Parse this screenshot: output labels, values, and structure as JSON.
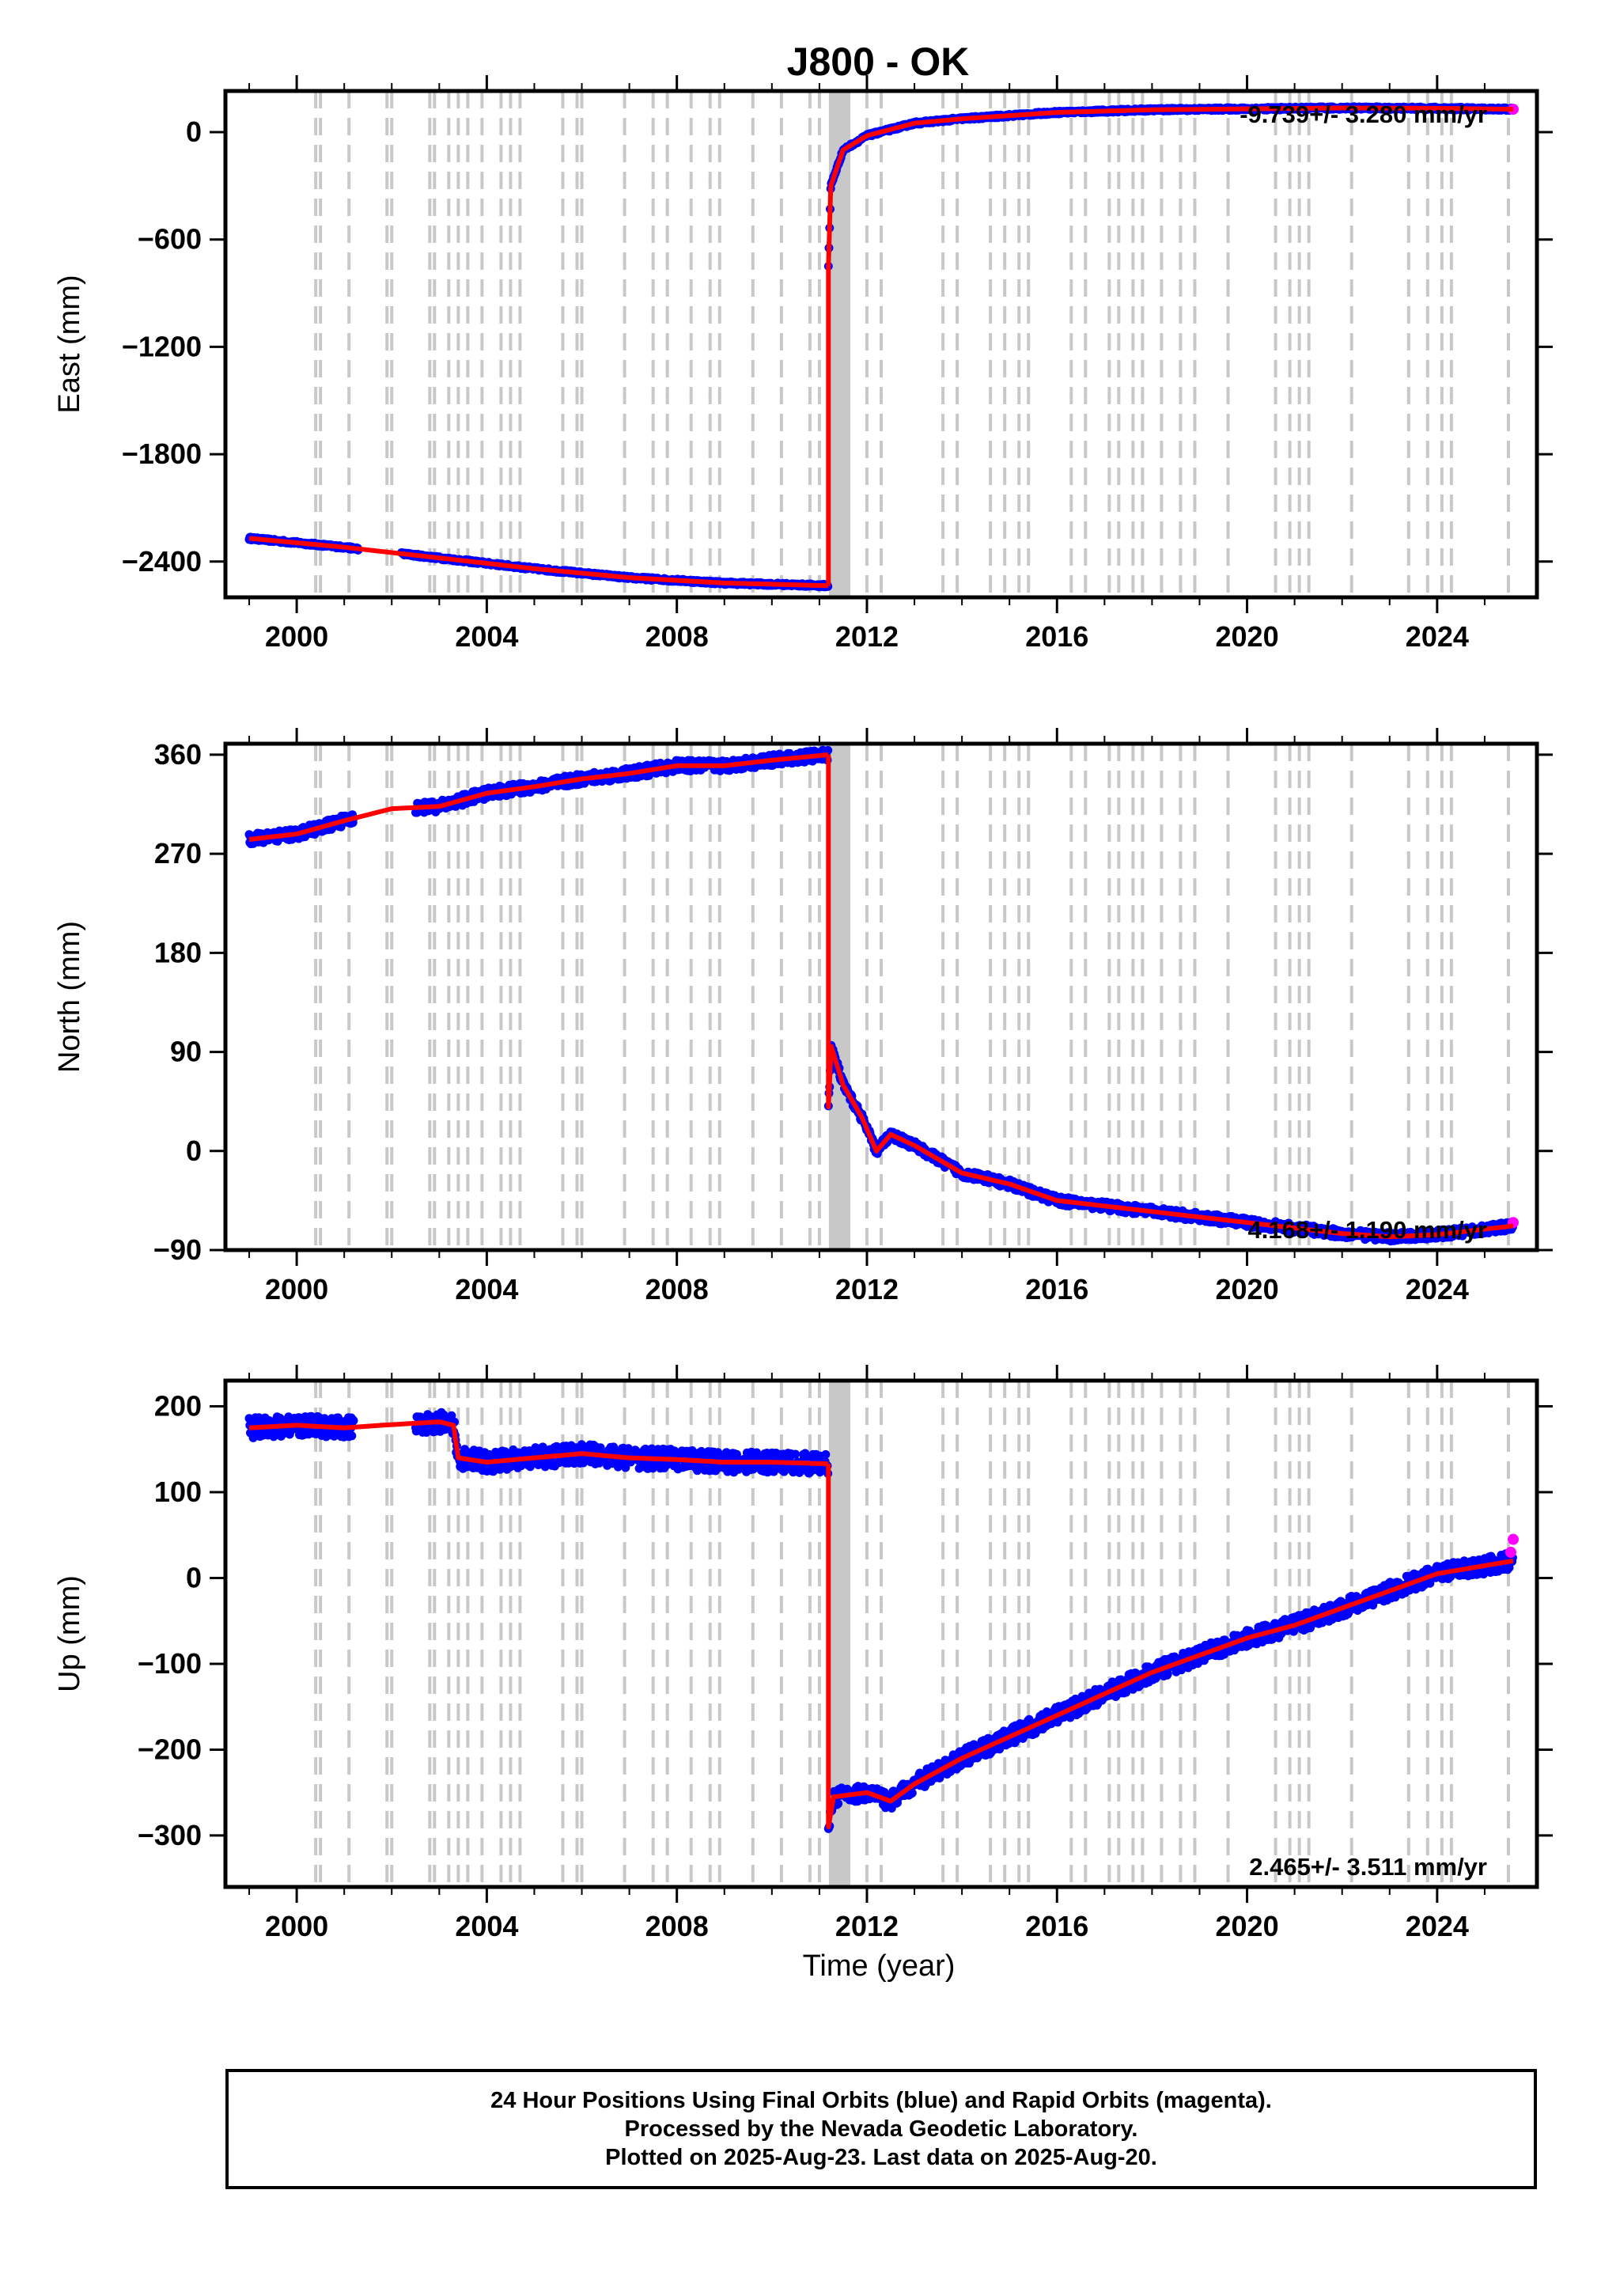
{
  "title": "J800 - OK",
  "xlabel": "Time (year)",
  "footer": {
    "line1": "24 Hour Positions Using Final Orbits (blue) and Rapid Orbits (magenta).",
    "line2": "Processed by the Nevada Geodetic Laboratory.",
    "line3": "Plotted on 2025-Aug-23. Last data on 2025-Aug-20."
  },
  "colors": {
    "final_orbits": "#0000ff",
    "rapid_orbits": "#ff00ff",
    "model": "#ff0000",
    "events": "#c8c8c8"
  },
  "events": [
    2000.4,
    2000.5,
    2001.1,
    2001.9,
    2002.0,
    2002.8,
    2002.9,
    2003.2,
    2003.4,
    2003.6,
    2003.9,
    2004.3,
    2004.5,
    2004.7,
    2005.6,
    2005.9,
    2006.0,
    2006.9,
    2007.5,
    2007.8,
    2008.3,
    2008.7,
    2008.9,
    2009.6,
    2010.2,
    2010.8,
    2011.0,
    2011.3,
    2011.6,
    2012.0,
    2012.3,
    2013.6,
    2013.9,
    2014.6,
    2014.9,
    2015.2,
    2015.4,
    2016.3,
    2016.6,
    2017.1,
    2017.3,
    2017.6,
    2017.8,
    2018.2,
    2018.6,
    2018.9,
    2019.6,
    2020.6,
    2020.9,
    2021.1,
    2021.3,
    2022.2,
    2023.4,
    2023.8,
    2024.1,
    2024.3,
    2025.5
  ],
  "chart_data": [
    {
      "type": "scatter",
      "ylabel": "East (mm)",
      "rate_label": "-9.739+/- 3.280 mm/yr",
      "xlim": [
        1998.5,
        2026.1
      ],
      "ylim": [
        -2600,
        230
      ],
      "xticks": [
        2000,
        2004,
        2008,
        2012,
        2016,
        2020,
        2024
      ],
      "yticks": [
        0,
        -600,
        -1200,
        -1800,
        -2400
      ],
      "series": [
        {
          "points": [
            [
              1999.0,
              -2270
            ],
            [
              2000.0,
              -2295
            ],
            [
              2001.0,
              -2320
            ],
            [
              2003.0,
              -2380
            ],
            [
              2005.0,
              -2440
            ],
            [
              2007.0,
              -2490
            ],
            [
              2009.0,
              -2520
            ],
            [
              2011.19,
              -2535
            ]
          ],
          "noise": 8
        },
        {
          "points": [
            [
              2011.19,
              -750
            ],
            [
              2011.24,
              -300
            ],
            [
              2011.5,
              -100
            ],
            [
              2012.0,
              -20
            ],
            [
              2013.0,
              50
            ],
            [
              2014.0,
              75
            ],
            [
              2016.0,
              110
            ],
            [
              2018.0,
              125
            ],
            [
              2020.0,
              130
            ],
            [
              2022.0,
              135
            ],
            [
              2024.0,
              133
            ],
            [
              2025.6,
              128
            ]
          ],
          "noise": 8
        }
      ],
      "model": [
        [
          [
            1999.0,
            -2270
          ],
          [
            2000.0,
            -2295
          ],
          [
            2001.0,
            -2320
          ],
          [
            2003.0,
            -2380
          ],
          [
            2005.0,
            -2440
          ],
          [
            2007.0,
            -2490
          ],
          [
            2009.0,
            -2520
          ],
          [
            2011.19,
            -2535
          ]
        ],
        [
          [
            2011.19,
            -2535
          ],
          [
            2011.19,
            -750
          ],
          [
            2011.24,
            -300
          ],
          [
            2011.5,
            -100
          ],
          [
            2012.0,
            -20
          ],
          [
            2013.0,
            50
          ],
          [
            2014.0,
            75
          ],
          [
            2016.0,
            110
          ],
          [
            2018.0,
            125
          ],
          [
            2020.0,
            130
          ],
          [
            2022.0,
            135
          ],
          [
            2024.0,
            133
          ],
          [
            2025.6,
            128
          ]
        ]
      ],
      "rapid": [
        [
          2025.6,
          128
        ]
      ]
    },
    {
      "type": "scatter",
      "ylabel": "North (mm)",
      "rate_label": "4.168+/- 1.190 mm/yr",
      "xlim": [
        1998.5,
        2026.1
      ],
      "ylim": [
        -90,
        370
      ],
      "xticks": [
        2000,
        2004,
        2008,
        2012,
        2016,
        2020,
        2024
      ],
      "yticks": [
        360,
        270,
        180,
        90,
        0,
        -90
      ],
      "series": [
        {
          "points": [
            [
              1999.0,
              283
            ],
            [
              2000.0,
              288
            ],
            [
              2001.0,
              300
            ],
            [
              2002.0,
              311
            ],
            [
              2003.0,
              313
            ],
            [
              2004.0,
              325
            ],
            [
              2005.0,
              331
            ],
            [
              2006.0,
              338
            ],
            [
              2007.0,
              343
            ],
            [
              2008.0,
              350
            ],
            [
              2009.0,
              350
            ],
            [
              2010.0,
              355
            ],
            [
              2011.19,
              360
            ]
          ],
          "noise": 5
        },
        {
          "points": [
            [
              2011.19,
              40
            ],
            [
              2011.25,
              95
            ],
            [
              2011.5,
              60
            ],
            [
              2011.9,
              30
            ],
            [
              2012.2,
              0
            ],
            [
              2012.5,
              15
            ],
            [
              2013.0,
              5
            ],
            [
              2014.0,
              -20
            ],
            [
              2015.0,
              -30
            ],
            [
              2016.0,
              -45
            ],
            [
              2017.0,
              -50
            ],
            [
              2018.0,
              -55
            ],
            [
              2019.0,
              -60
            ],
            [
              2020.0,
              -65
            ],
            [
              2021.0,
              -70
            ],
            [
              2022.0,
              -75
            ],
            [
              2023.0,
              -78
            ],
            [
              2024.0,
              -76
            ],
            [
              2025.6,
              -68
            ]
          ],
          "noise": 4
        }
      ],
      "model": [
        [
          [
            1999.0,
            283
          ],
          [
            2000.0,
            288
          ],
          [
            2001.0,
            300
          ],
          [
            2002.0,
            311
          ],
          [
            2003.0,
            313
          ],
          [
            2004.0,
            325
          ],
          [
            2005.0,
            331
          ],
          [
            2006.0,
            338
          ],
          [
            2007.0,
            343
          ],
          [
            2008.0,
            350
          ],
          [
            2009.0,
            350
          ],
          [
            2010.0,
            355
          ],
          [
            2011.19,
            360
          ]
        ],
        [
          [
            2011.19,
            360
          ],
          [
            2011.19,
            40
          ],
          [
            2011.25,
            95
          ],
          [
            2011.5,
            60
          ],
          [
            2011.9,
            30
          ],
          [
            2012.2,
            0
          ],
          [
            2012.5,
            15
          ],
          [
            2013.0,
            5
          ],
          [
            2014.0,
            -20
          ],
          [
            2015.0,
            -30
          ],
          [
            2016.0,
            -45
          ],
          [
            2017.0,
            -50
          ],
          [
            2018.0,
            -55
          ],
          [
            2019.0,
            -60
          ],
          [
            2020.0,
            -65
          ],
          [
            2021.0,
            -70
          ],
          [
            2022.0,
            -75
          ],
          [
            2023.0,
            -78
          ],
          [
            2024.0,
            -76
          ],
          [
            2025.6,
            -68
          ]
        ]
      ],
      "rapid": [
        [
          2025.6,
          -65
        ]
      ]
    },
    {
      "type": "scatter",
      "ylabel": "Up (mm)",
      "rate_label": "2.465+/- 3.511 mm/yr",
      "xlim": [
        1998.5,
        2026.1
      ],
      "ylim": [
        -360,
        230
      ],
      "xticks": [
        2000,
        2004,
        2008,
        2012,
        2016,
        2020,
        2024
      ],
      "yticks": [
        200,
        100,
        0,
        -100,
        -200,
        -300
      ],
      "series": [
        {
          "points": [
            [
              1999.0,
              175
            ],
            [
              2000.0,
              178
            ],
            [
              2001.0,
              175
            ],
            [
              2001.8,
              178
            ],
            [
              2003.0,
              182
            ],
            [
              2003.3,
              178
            ],
            [
              2003.4,
              140
            ],
            [
              2004.0,
              135
            ],
            [
              2005.0,
              140
            ],
            [
              2006.0,
              145
            ],
            [
              2007.0,
              140
            ],
            [
              2008.0,
              138
            ],
            [
              2009.0,
              135
            ],
            [
              2010.0,
              135
            ],
            [
              2011.19,
              133
            ]
          ],
          "noise": 12
        },
        {
          "points": [
            [
              2011.19,
              -290
            ],
            [
              2011.3,
              -255
            ],
            [
              2012.0,
              -250
            ],
            [
              2012.5,
              -260
            ],
            [
              2013.0,
              -240
            ],
            [
              2014.0,
              -210
            ],
            [
              2015.0,
              -185
            ],
            [
              2016.0,
              -160
            ],
            [
              2017.0,
              -135
            ],
            [
              2018.0,
              -110
            ],
            [
              2019.0,
              -90
            ],
            [
              2020.0,
              -70
            ],
            [
              2021.0,
              -55
            ],
            [
              2022.0,
              -35
            ],
            [
              2023.0,
              -15
            ],
            [
              2024.0,
              5
            ],
            [
              2025.6,
              20
            ]
          ],
          "noise": 10
        }
      ],
      "model": [
        [
          [
            1999.0,
            175
          ],
          [
            2000.0,
            178
          ],
          [
            2001.0,
            175
          ],
          [
            2001.8,
            178
          ],
          [
            2003.0,
            182
          ],
          [
            2003.3,
            178
          ],
          [
            2003.4,
            140
          ],
          [
            2004.0,
            135
          ],
          [
            2005.0,
            140
          ],
          [
            2006.0,
            145
          ],
          [
            2007.0,
            140
          ],
          [
            2008.0,
            138
          ],
          [
            2009.0,
            135
          ],
          [
            2010.0,
            135
          ],
          [
            2011.19,
            133
          ]
        ],
        [
          [
            2011.19,
            133
          ],
          [
            2011.19,
            -290
          ],
          [
            2011.3,
            -255
          ],
          [
            2012.0,
            -250
          ],
          [
            2012.5,
            -260
          ],
          [
            2013.0,
            -240
          ],
          [
            2014.0,
            -210
          ],
          [
            2015.0,
            -185
          ],
          [
            2016.0,
            -160
          ],
          [
            2017.0,
            -135
          ],
          [
            2018.0,
            -110
          ],
          [
            2019.0,
            -90
          ],
          [
            2020.0,
            -70
          ],
          [
            2021.0,
            -55
          ],
          [
            2022.0,
            -35
          ],
          [
            2023.0,
            -15
          ],
          [
            2024.0,
            5
          ],
          [
            2025.6,
            20
          ]
        ]
      ],
      "rapid": [
        [
          2025.6,
          45
        ],
        [
          2025.55,
          30
        ]
      ]
    }
  ]
}
